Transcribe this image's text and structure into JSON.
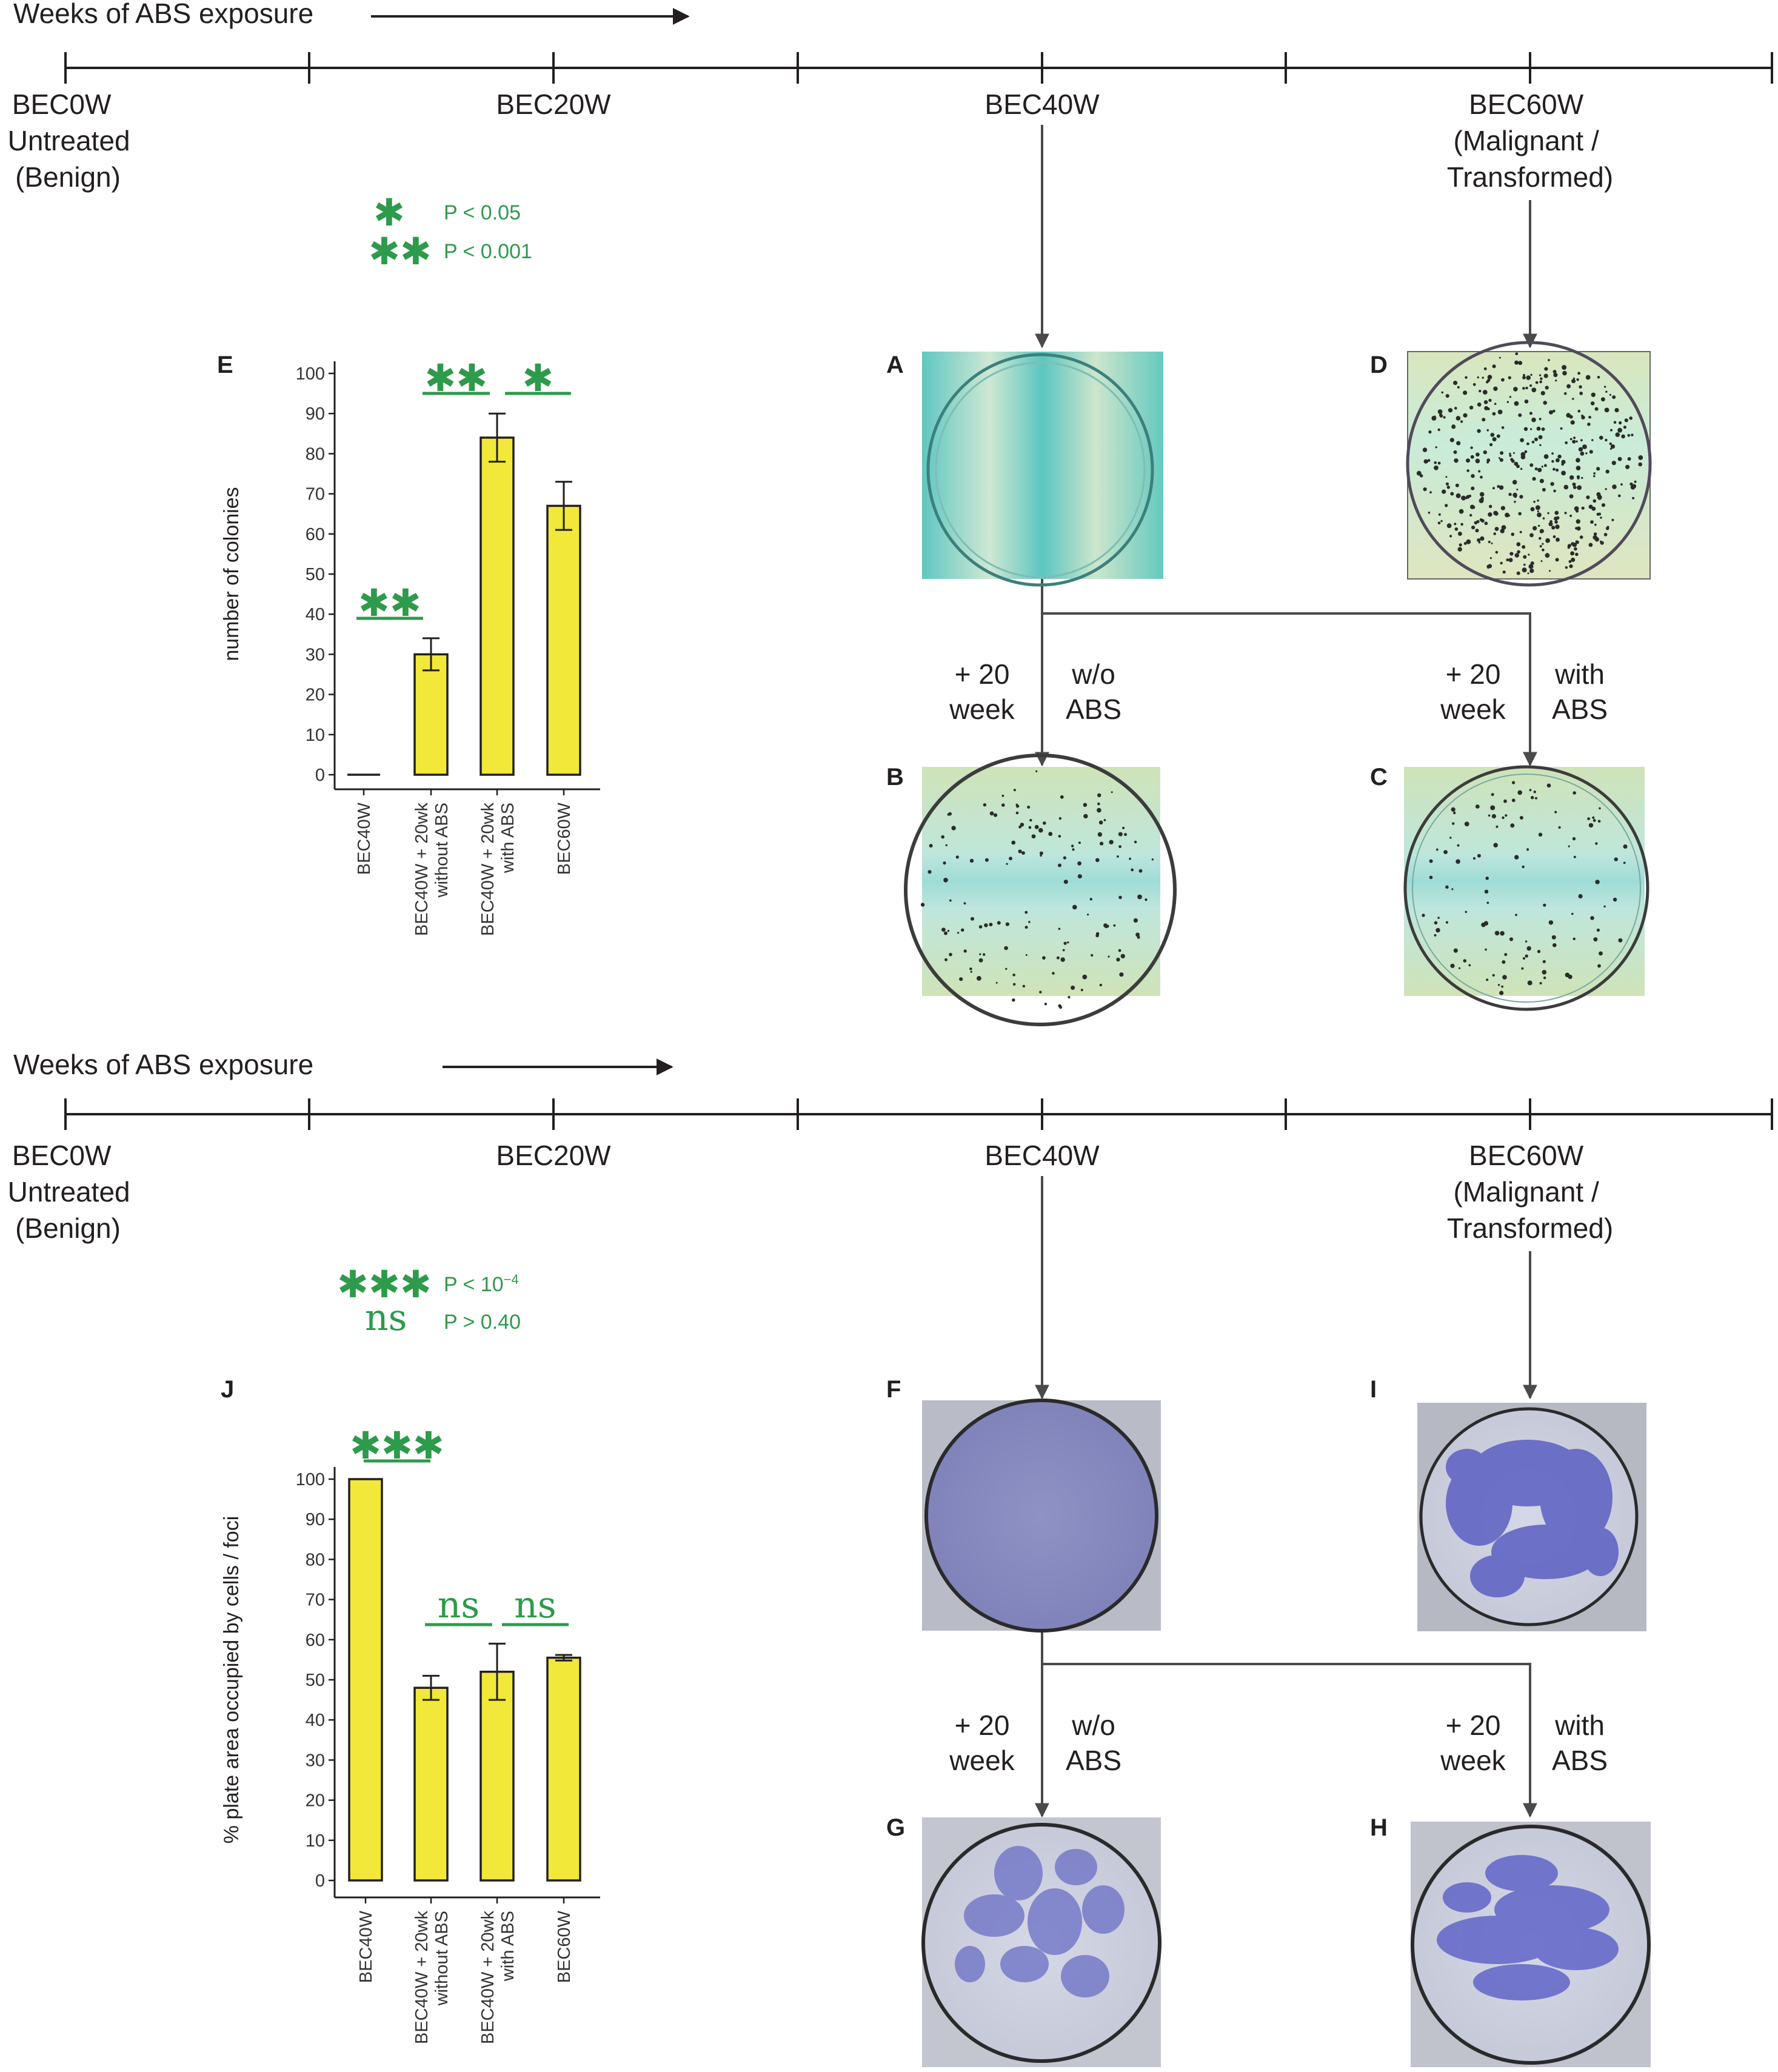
{
  "timeline": {
    "header": "Weeks of ABS exposure",
    "labels": {
      "w0": [
        "BEC0W",
        "Untreated",
        "(Benign)"
      ],
      "w20": [
        "BEC20W"
      ],
      "w40": [
        "BEC40W"
      ],
      "w60": [
        "BEC60W",
        "(Malignant /",
        "Transformed)"
      ]
    }
  },
  "branches": {
    "left": [
      "+ 20",
      "week"
    ],
    "left_cond": [
      "w/o",
      "ABS"
    ],
    "right": [
      "+ 20",
      "week"
    ],
    "right_cond": [
      "with",
      "ABS"
    ]
  },
  "panels": {
    "top": [
      "E",
      "A",
      "B",
      "C",
      "D"
    ],
    "bottom": [
      "J",
      "F",
      "G",
      "H",
      "I"
    ]
  },
  "legend_top": [
    {
      "symbol": "✱",
      "text": "P < 0.05"
    },
    {
      "symbol": "✱✱",
      "text": "P < 0.001"
    }
  ],
  "legend_bottom": [
    {
      "symbol": "✱✱✱",
      "text": "P < 10",
      "sup": "−4"
    },
    {
      "symbol": "ns",
      "text": "P > 0.40"
    }
  ],
  "colors": {
    "bar": "#f2e83a",
    "significance": "#2e9a4b",
    "arrow": "#4a4a4a"
  },
  "chart_data": [
    {
      "type": "bar",
      "panel": "E",
      "ylabel": "number of colonies",
      "ylim": [
        0,
        100
      ],
      "yticks": [
        0,
        10,
        20,
        30,
        40,
        50,
        60,
        70,
        80,
        90,
        100
      ],
      "categories": [
        [
          "BEC40W"
        ],
        [
          "BEC40W + 20wk",
          "without ABS"
        ],
        [
          "BEC40W + 20wk",
          "with ABS"
        ],
        [
          "BEC60W"
        ]
      ],
      "values": [
        0,
        30,
        84,
        67
      ],
      "errors": [
        0,
        4,
        6,
        6
      ],
      "significance": [
        {
          "from": 0,
          "to": 1,
          "label": "✱✱"
        },
        {
          "from": 1,
          "to": 2,
          "label": "✱✱"
        },
        {
          "from": 2,
          "to": 3,
          "label": "✱"
        }
      ]
    },
    {
      "type": "bar",
      "panel": "J",
      "ylabel": "% plate area occupied by cells / foci",
      "ylim": [
        0,
        100
      ],
      "yticks": [
        0,
        10,
        20,
        30,
        40,
        50,
        60,
        70,
        80,
        90,
        100
      ],
      "categories": [
        [
          "BEC40W"
        ],
        [
          "BEC40W + 20wk",
          "without ABS"
        ],
        [
          "BEC40W + 20wk",
          "with ABS"
        ],
        [
          "BEC60W"
        ]
      ],
      "values": [
        100,
        48,
        52,
        55.5
      ],
      "errors": [
        0,
        3,
        7,
        0.7
      ],
      "significance": [
        {
          "from": 0,
          "to": 1,
          "label": "✱✱✱"
        },
        {
          "from": 1,
          "to": 2,
          "label": "ns"
        },
        {
          "from": 2,
          "to": 3,
          "label": "ns"
        }
      ]
    }
  ]
}
